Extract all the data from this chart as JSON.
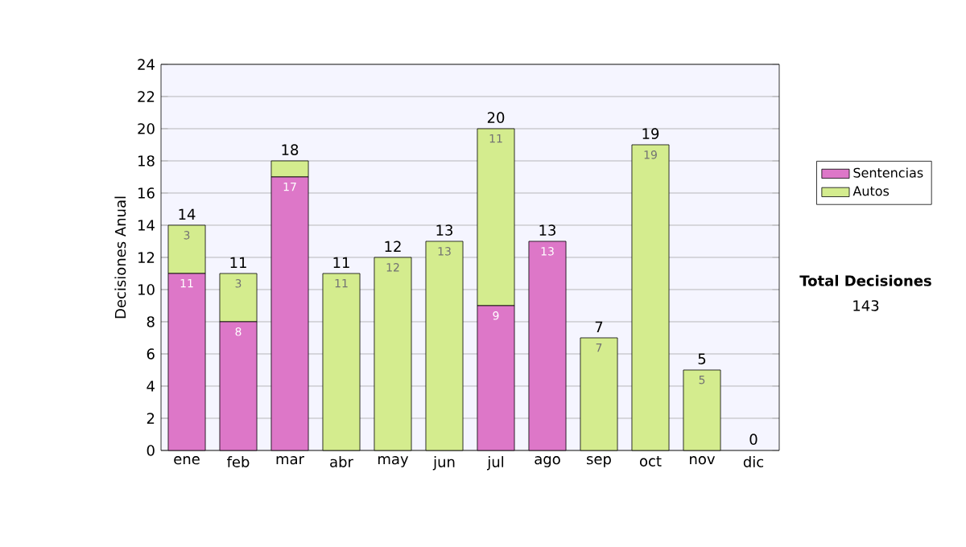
{
  "chart_data": {
    "type": "bar",
    "stacked": true,
    "ylabel": "Decisiones Anual",
    "categories": [
      "ene",
      "feb",
      "mar",
      "abr",
      "may",
      "jun",
      "jul",
      "ago",
      "sep",
      "oct",
      "nov",
      "dic"
    ],
    "series": [
      {
        "name": "Sentencias",
        "color": "#dd77c8",
        "values": [
          11,
          8,
          17,
          0,
          0,
          0,
          9,
          13,
          0,
          0,
          0,
          0
        ],
        "value_labels": [
          "11",
          "8",
          "17",
          null,
          null,
          null,
          "9",
          "13",
          null,
          null,
          null,
          null
        ]
      },
      {
        "name": "Autos",
        "color": "#d4ec8e",
        "values": [
          3,
          3,
          1,
          11,
          12,
          13,
          11,
          0,
          7,
          19,
          5,
          0
        ],
        "value_labels": [
          "3",
          "3",
          null,
          "11",
          "12",
          "13",
          "11",
          null,
          "7",
          "19",
          "5",
          null
        ]
      }
    ],
    "totals": [
      "14",
      "11",
      "18",
      "11",
      "12",
      "13",
      "20",
      "13",
      "7",
      "19",
      "5",
      "0"
    ],
    "ylim": [
      0,
      24
    ],
    "yticks": [
      0,
      2,
      4,
      6,
      8,
      10,
      12,
      14,
      16,
      18,
      20,
      22,
      24
    ],
    "grid": "y",
    "legend": "right",
    "annotations": [
      "Total Decisiones",
      "143"
    ]
  }
}
